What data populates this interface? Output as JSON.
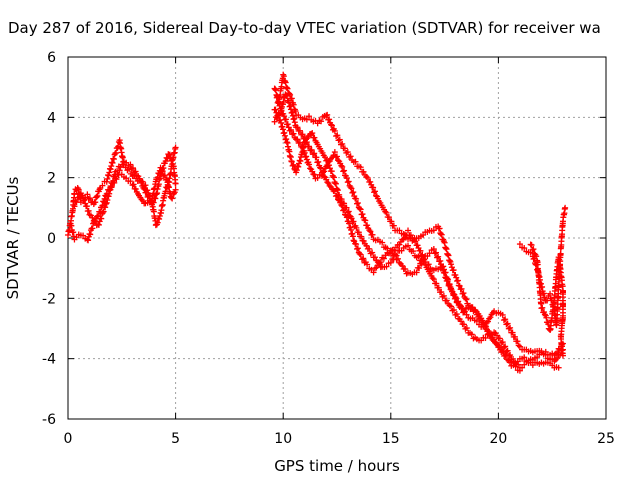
{
  "chart_data": {
    "type": "scatter",
    "title": "Day 287 of 2016, Sidereal Day-to-day VTEC variation (SDTVAR) for receiver wa",
    "xlabel": "GPS time / hours",
    "ylabel": "SDTVAR / TECUs",
    "xlim": [
      0,
      25
    ],
    "ylim": [
      -6,
      6
    ],
    "xticks": [
      0,
      5,
      10,
      15,
      20,
      25
    ],
    "yticks": [
      -6,
      -4,
      -2,
      0,
      2,
      4,
      6
    ],
    "grid": true,
    "marker": "plus",
    "color": "#ff0000",
    "segments": [
      [
        [
          0.0,
          0.1
        ],
        [
          0.2,
          0.8
        ],
        [
          0.3,
          1.5
        ],
        [
          0.45,
          1.7
        ],
        [
          0.6,
          1.2
        ],
        [
          0.9,
          1.4
        ],
        [
          1.2,
          1.1
        ],
        [
          1.5,
          1.7
        ],
        [
          1.8,
          1.9
        ],
        [
          2.1,
          2.6
        ],
        [
          2.4,
          3.2
        ],
        [
          2.6,
          2.4
        ],
        [
          3.0,
          2.1
        ],
        [
          3.4,
          1.8
        ],
        [
          3.7,
          1.4
        ],
        [
          3.9,
          1.1
        ],
        [
          4.1,
          1.4
        ],
        [
          4.3,
          2.1
        ],
        [
          4.5,
          2.5
        ],
        [
          4.7,
          2.8
        ],
        [
          4.9,
          2.4
        ],
        [
          5.0,
          1.8
        ]
      ],
      [
        [
          0.1,
          0.5
        ],
        [
          0.3,
          0.0
        ],
        [
          0.6,
          0.1
        ],
        [
          0.9,
          -0.1
        ],
        [
          1.2,
          0.5
        ],
        [
          1.5,
          0.9
        ],
        [
          1.8,
          1.5
        ],
        [
          2.1,
          1.8
        ],
        [
          2.4,
          2.2
        ],
        [
          2.7,
          2.0
        ],
        [
          3.0,
          1.8
        ],
        [
          3.3,
          1.4
        ],
        [
          3.6,
          1.1
        ],
        [
          3.9,
          1.3
        ],
        [
          4.1,
          1.9
        ],
        [
          4.3,
          2.3
        ],
        [
          4.6,
          1.9
        ],
        [
          4.8,
          1.3
        ],
        [
          5.0,
          1.6
        ]
      ],
      [
        [
          0.3,
          1.1
        ],
        [
          0.6,
          1.5
        ],
        [
          1.0,
          0.8
        ],
        [
          1.4,
          0.4
        ],
        [
          1.8,
          1.2
        ],
        [
          2.2,
          2.2
        ],
        [
          2.6,
          2.5
        ],
        [
          2.9,
          2.4
        ],
        [
          3.2,
          2.1
        ],
        [
          3.6,
          1.7
        ],
        [
          3.9,
          1.2
        ],
        [
          4.1,
          0.4
        ],
        [
          4.3,
          0.8
        ],
        [
          4.5,
          1.5
        ],
        [
          4.7,
          1.9
        ],
        [
          4.9,
          2.7
        ],
        [
          5.0,
          3.0
        ]
      ],
      [
        [
          9.6,
          5.0
        ],
        [
          9.8,
          4.5
        ],
        [
          10.0,
          5.4
        ],
        [
          10.2,
          4.9
        ],
        [
          10.4,
          4.6
        ],
        [
          10.6,
          4.1
        ],
        [
          10.9,
          3.9
        ],
        [
          11.2,
          4.0
        ],
        [
          11.6,
          3.8
        ],
        [
          12.0,
          4.1
        ],
        [
          12.4,
          3.5
        ],
        [
          12.8,
          3.0
        ],
        [
          13.2,
          2.6
        ],
        [
          13.6,
          2.3
        ],
        [
          14.0,
          1.9
        ],
        [
          14.4,
          1.3
        ],
        [
          14.8,
          0.8
        ],
        [
          15.2,
          0.3
        ],
        [
          15.6,
          0.1
        ],
        [
          16.0,
          -0.1
        ],
        [
          16.4,
          0.1
        ],
        [
          16.8,
          0.2
        ],
        [
          17.2,
          0.4
        ],
        [
          17.5,
          -0.2
        ],
        [
          17.8,
          -0.9
        ],
        [
          18.2,
          -1.6
        ],
        [
          18.6,
          -2.2
        ],
        [
          19.0,
          -2.5
        ],
        [
          19.4,
          -2.9
        ],
        [
          19.8,
          -2.4
        ],
        [
          20.2,
          -2.6
        ],
        [
          20.6,
          -3.1
        ],
        [
          21.0,
          -3.6
        ],
        [
          21.4,
          -3.8
        ],
        [
          21.8,
          -3.7
        ],
        [
          22.2,
          -3.9
        ],
        [
          22.6,
          -4.1
        ],
        [
          23.0,
          -3.7
        ]
      ],
      [
        [
          9.6,
          4.3
        ],
        [
          9.9,
          3.8
        ],
        [
          10.2,
          3.1
        ],
        [
          10.4,
          2.5
        ],
        [
          10.6,
          2.2
        ],
        [
          10.8,
          2.6
        ],
        [
          11.0,
          3.2
        ],
        [
          11.3,
          3.5
        ],
        [
          11.6,
          3.1
        ],
        [
          12.0,
          2.6
        ],
        [
          12.3,
          2.1
        ],
        [
          12.6,
          1.4
        ],
        [
          13.0,
          0.9
        ],
        [
          13.4,
          0.3
        ],
        [
          13.8,
          -0.2
        ],
        [
          14.2,
          -0.6
        ],
        [
          14.6,
          -1.0
        ],
        [
          15.0,
          -0.8
        ],
        [
          15.4,
          -0.4
        ],
        [
          15.8,
          -0.3
        ],
        [
          16.2,
          -0.6
        ],
        [
          16.6,
          -0.9
        ],
        [
          17.0,
          -1.4
        ],
        [
          17.4,
          -1.9
        ],
        [
          17.8,
          -2.3
        ],
        [
          18.2,
          -2.7
        ],
        [
          18.6,
          -3.1
        ],
        [
          19.0,
          -3.4
        ],
        [
          19.4,
          -3.3
        ],
        [
          19.8,
          -3.1
        ],
        [
          20.2,
          -3.5
        ],
        [
          20.6,
          -4.0
        ],
        [
          21.0,
          -4.3
        ],
        [
          21.4,
          -4.1
        ],
        [
          21.8,
          -3.9
        ],
        [
          22.2,
          -3.8
        ],
        [
          22.6,
          -3.9
        ],
        [
          23.0,
          -3.5
        ]
      ],
      [
        [
          9.6,
          3.9
        ],
        [
          9.9,
          4.2
        ],
        [
          10.1,
          4.8
        ],
        [
          10.3,
          4.4
        ],
        [
          10.6,
          3.7
        ],
        [
          10.9,
          3.4
        ],
        [
          11.2,
          3.0
        ],
        [
          11.5,
          2.7
        ],
        [
          11.8,
          2.2
        ],
        [
          12.1,
          1.8
        ],
        [
          12.4,
          1.5
        ],
        [
          12.7,
          1.1
        ],
        [
          13.0,
          0.6
        ],
        [
          13.3,
          -0.1
        ],
        [
          13.6,
          -0.6
        ],
        [
          13.9,
          -0.9
        ],
        [
          14.2,
          -1.1
        ],
        [
          14.6,
          -0.7
        ],
        [
          15.0,
          -0.4
        ],
        [
          15.4,
          -0.8
        ],
        [
          15.8,
          -1.2
        ],
        [
          16.2,
          -1.1
        ],
        [
          16.6,
          -0.6
        ],
        [
          17.0,
          -0.4
        ],
        [
          17.3,
          -0.8
        ],
        [
          17.6,
          -1.4
        ],
        [
          18.0,
          -2.0
        ],
        [
          18.4,
          -2.4
        ],
        [
          18.8,
          -2.3
        ],
        [
          19.2,
          -2.7
        ],
        [
          19.6,
          -3.2
        ],
        [
          20.0,
          -3.6
        ],
        [
          20.4,
          -3.9
        ],
        [
          20.8,
          -4.1
        ],
        [
          21.2,
          -4.0
        ],
        [
          21.6,
          -4.2
        ],
        [
          22.0,
          -4.1
        ],
        [
          22.4,
          -4.2
        ],
        [
          22.8,
          -4.3
        ]
      ],
      [
        [
          9.7,
          4.6
        ],
        [
          10.0,
          4.1
        ],
        [
          10.3,
          3.6
        ],
        [
          10.6,
          3.3
        ],
        [
          10.9,
          3.0
        ],
        [
          11.2,
          2.4
        ],
        [
          11.5,
          2.0
        ],
        [
          11.8,
          2.1
        ],
        [
          12.1,
          2.5
        ],
        [
          12.4,
          2.8
        ],
        [
          12.7,
          2.4
        ],
        [
          13.0,
          1.9
        ],
        [
          13.3,
          1.4
        ],
        [
          13.6,
          0.9
        ],
        [
          13.9,
          0.4
        ],
        [
          14.2,
          0.0
        ],
        [
          14.6,
          -0.2
        ],
        [
          15.0,
          -0.5
        ],
        [
          15.4,
          -0.2
        ],
        [
          15.8,
          0.2
        ],
        [
          16.2,
          -0.2
        ],
        [
          16.6,
          -0.8
        ],
        [
          17.0,
          -1.1
        ],
        [
          17.4,
          -0.9
        ],
        [
          17.8,
          -1.7
        ],
        [
          18.2,
          -2.3
        ],
        [
          18.6,
          -2.6
        ],
        [
          19.0,
          -2.8
        ],
        [
          19.4,
          -3.0
        ],
        [
          19.8,
          -3.4
        ],
        [
          20.2,
          -3.8
        ],
        [
          20.6,
          -4.2
        ],
        [
          21.0,
          -4.4
        ]
      ],
      [
        [
          21.0,
          -0.2
        ],
        [
          21.3,
          -0.4
        ],
        [
          21.6,
          -0.6
        ],
        [
          21.8,
          -1.0
        ],
        [
          22.0,
          -1.6
        ],
        [
          22.2,
          -2.1
        ],
        [
          22.4,
          -1.9
        ],
        [
          22.6,
          -2.4
        ],
        [
          22.7,
          -2.9
        ],
        [
          22.8,
          -1.6
        ],
        [
          22.9,
          -0.4
        ],
        [
          23.0,
          0.6
        ],
        [
          23.1,
          1.0
        ]
      ],
      [
        [
          21.5,
          -0.2
        ],
        [
          21.8,
          -0.7
        ],
        [
          22.0,
          -2.3
        ],
        [
          22.2,
          -2.6
        ],
        [
          22.4,
          -3.1
        ],
        [
          22.6,
          -2.0
        ],
        [
          22.7,
          -1.2
        ],
        [
          22.8,
          -0.6
        ],
        [
          23.0,
          -1.7
        ],
        [
          23.0,
          -2.6
        ],
        [
          22.9,
          -3.3
        ],
        [
          23.0,
          -3.9
        ]
      ]
    ]
  }
}
